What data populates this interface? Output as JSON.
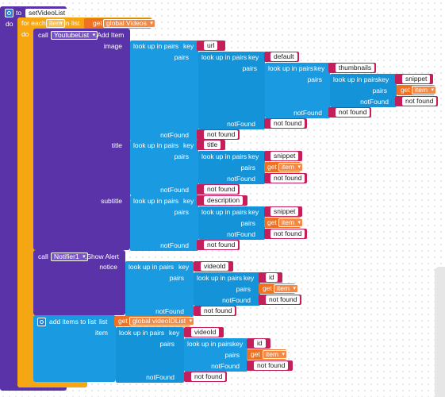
{
  "procedure": {
    "to": "to",
    "name": "setVideoList",
    "do": "do"
  },
  "foreach": {
    "label": "for each",
    "var": "item",
    "in_list": "in list",
    "get": "get",
    "global": "global Videos",
    "do": "do"
  },
  "call1": {
    "call": "call",
    "component": "YoutubeList",
    "method": ".Add Item"
  },
  "lbl": {
    "image": "image",
    "title": "title",
    "subtitle": "subtitle",
    "notice": "notice",
    "item": "item",
    "pairs": "pairs",
    "notFound": "notFound",
    "key": "key",
    "lookup": "look up in pairs",
    "get": "get",
    "get_item": "item"
  },
  "str": {
    "url": "url",
    "default": "default",
    "thumbnails": "thumbnails",
    "snippet": "snippet",
    "not_found": "not found",
    "title": "title",
    "description": "description",
    "videoId": "videoId",
    "id": "id"
  },
  "call2": {
    "call": "call",
    "component": "Notifier1",
    "method": ".Show Alert"
  },
  "additems": {
    "label": "add items to list",
    "list": "list",
    "get": "get",
    "global": "global videoIDList"
  },
  "colors": {
    "procedure": "#5b33a8",
    "control": "#f5a612",
    "lists": "#1a9ae0",
    "text": "#c41f5a",
    "variables": "#ee7222"
  }
}
